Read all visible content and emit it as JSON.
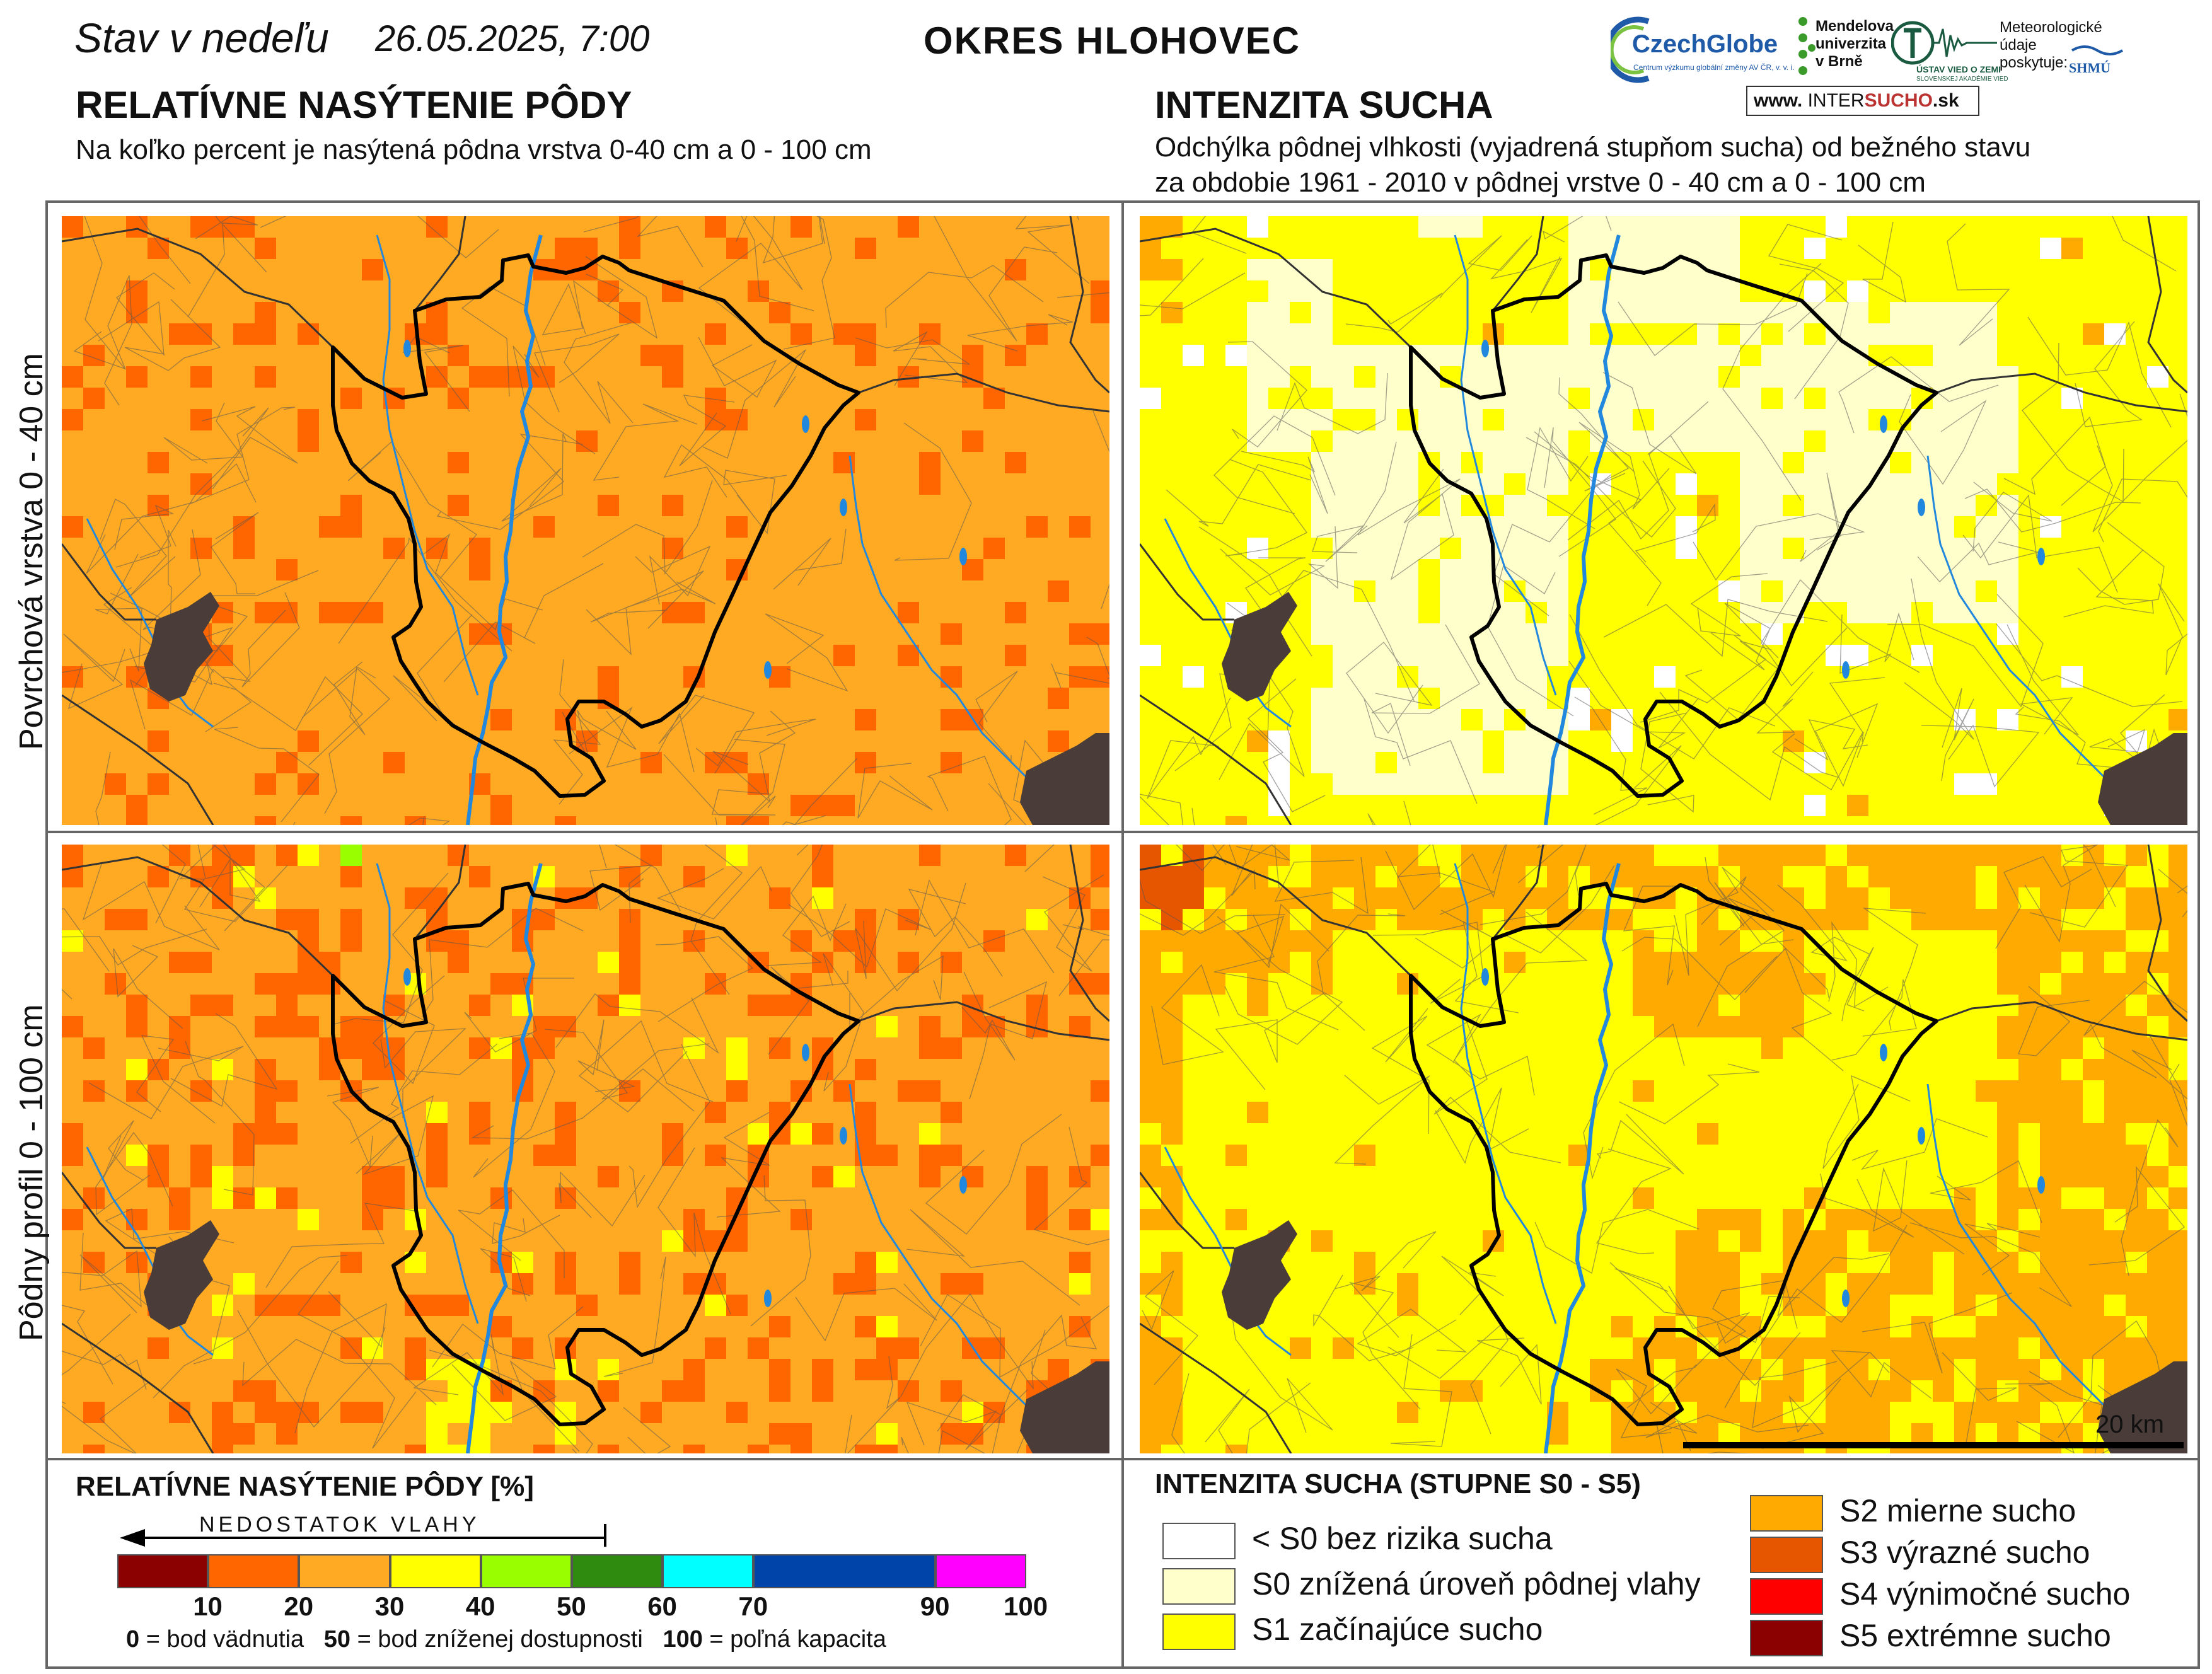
{
  "header": {
    "status_prefix": "Stav v nedeľu",
    "datetime": "26.05.2025, 7:00",
    "district": "OKRES  HLOHOVEC"
  },
  "left_panel": {
    "title": "RELATÍVNE NASÝTENIE PÔDY",
    "subtitle": "Na koľko percent je nasýtená pôdna vrstva 0-40 cm a 0 - 100 cm"
  },
  "right_panel": {
    "title": "INTENZITA SUCHA",
    "subtitle_line1": "Odchýlka pôdnej vlhkosti (vyjadrená stupňom sucha) od bežného stavu",
    "subtitle_line2": "za obdobie 1961 - 2010 v pôdnej vrstve 0 - 40 cm a 0 - 100 cm"
  },
  "rows": {
    "top_label": "Povrchová vrstva 0 - 40 cm",
    "bottom_label": "Pôdny profil 0 - 100 cm"
  },
  "logos": {
    "czechglobe": "CzechGlobe",
    "czechglobe_sub": "Centrum výzkumu globální změny AV ČR, v. v. i.",
    "mendel_1": "Mendelova",
    "mendel_2": "univerzita",
    "mendel_3": "v Brně",
    "uvz": "ÚSTAV VIED O ZEMI",
    "uvz_sub": "SLOVENSKEJ AKADÉMIE VIED",
    "meteo_1": "Meteorologické",
    "meteo_2": "údaje",
    "meteo_3": "poskytuje:",
    "shmu": "SHMÚ",
    "intersucho_www": "www.",
    "intersucho_a": "INTER",
    "intersucho_b": "SUCHO",
    "intersucho_c": ".sk"
  },
  "scale_bar": {
    "label": "20 km"
  },
  "saturation_legend": {
    "title": "RELATÍVNE NASÝTENIE PÔDY [%]",
    "arrow_label": "NEDOSTATOK VLAHY",
    "classes": [
      {
        "from": 0,
        "to": 10,
        "color": "#8b0000"
      },
      {
        "from": 10,
        "to": 20,
        "color": "#ff6600"
      },
      {
        "from": 20,
        "to": 30,
        "color": "#ffaa22"
      },
      {
        "from": 30,
        "to": 40,
        "color": "#ffff00"
      },
      {
        "from": 40,
        "to": 50,
        "color": "#99ff00"
      },
      {
        "from": 50,
        "to": 60,
        "color": "#2e8b10"
      },
      {
        "from": 60,
        "to": 70,
        "color": "#00ffff"
      },
      {
        "from": 70,
        "to": 90,
        "color": "#0044aa"
      },
      {
        "from": 90,
        "to": 100,
        "color": "#ff00ff"
      }
    ],
    "ticks": [
      "10",
      "20",
      "30",
      "40",
      "50",
      "60",
      "70",
      "90",
      "100"
    ],
    "note_0_val": "0",
    "note_0_txt": " = bod vädnutia",
    "note_50_val": "50",
    "note_50_txt": " = bod zníženej dostupnosti",
    "note_100_val": "100",
    "note_100_txt": " = poľná kapacita"
  },
  "drought_legend": {
    "title": "INTENZITA SUCHA (STUPNE S0 - S5)",
    "items": [
      {
        "label": "< S0 bez rizika sucha",
        "color": "#ffffff"
      },
      {
        "label": "S0 znížená úroveň pôdnej vlahy",
        "color": "#ffffcc"
      },
      {
        "label": "S1 začínajúce sucho",
        "color": "#ffff00"
      },
      {
        "label": "S2 mierne sucho",
        "color": "#ffaa00"
      },
      {
        "label": "S3 výrazné sucho",
        "color": "#e65500"
      },
      {
        "label": "S4 výnimočné sucho",
        "color": "#ff0000"
      },
      {
        "label": "S5 extrémne sucho",
        "color": "#8b0000"
      }
    ]
  },
  "map_colors": {
    "sat_base": "#ffaa22",
    "sat_low": "#ff6600",
    "sat_mid": "#ffff00",
    "sat_hi": "#99ff00",
    "drought_none": "#ffffff",
    "drought_s0": "#ffffcc",
    "drought_s1": "#ffff00",
    "drought_s2": "#ffaa00",
    "drought_s3": "#e65500",
    "urban": "#4a3c38",
    "river": "#2288dd",
    "district_border": "#000000",
    "municipal_border": "#555555"
  }
}
